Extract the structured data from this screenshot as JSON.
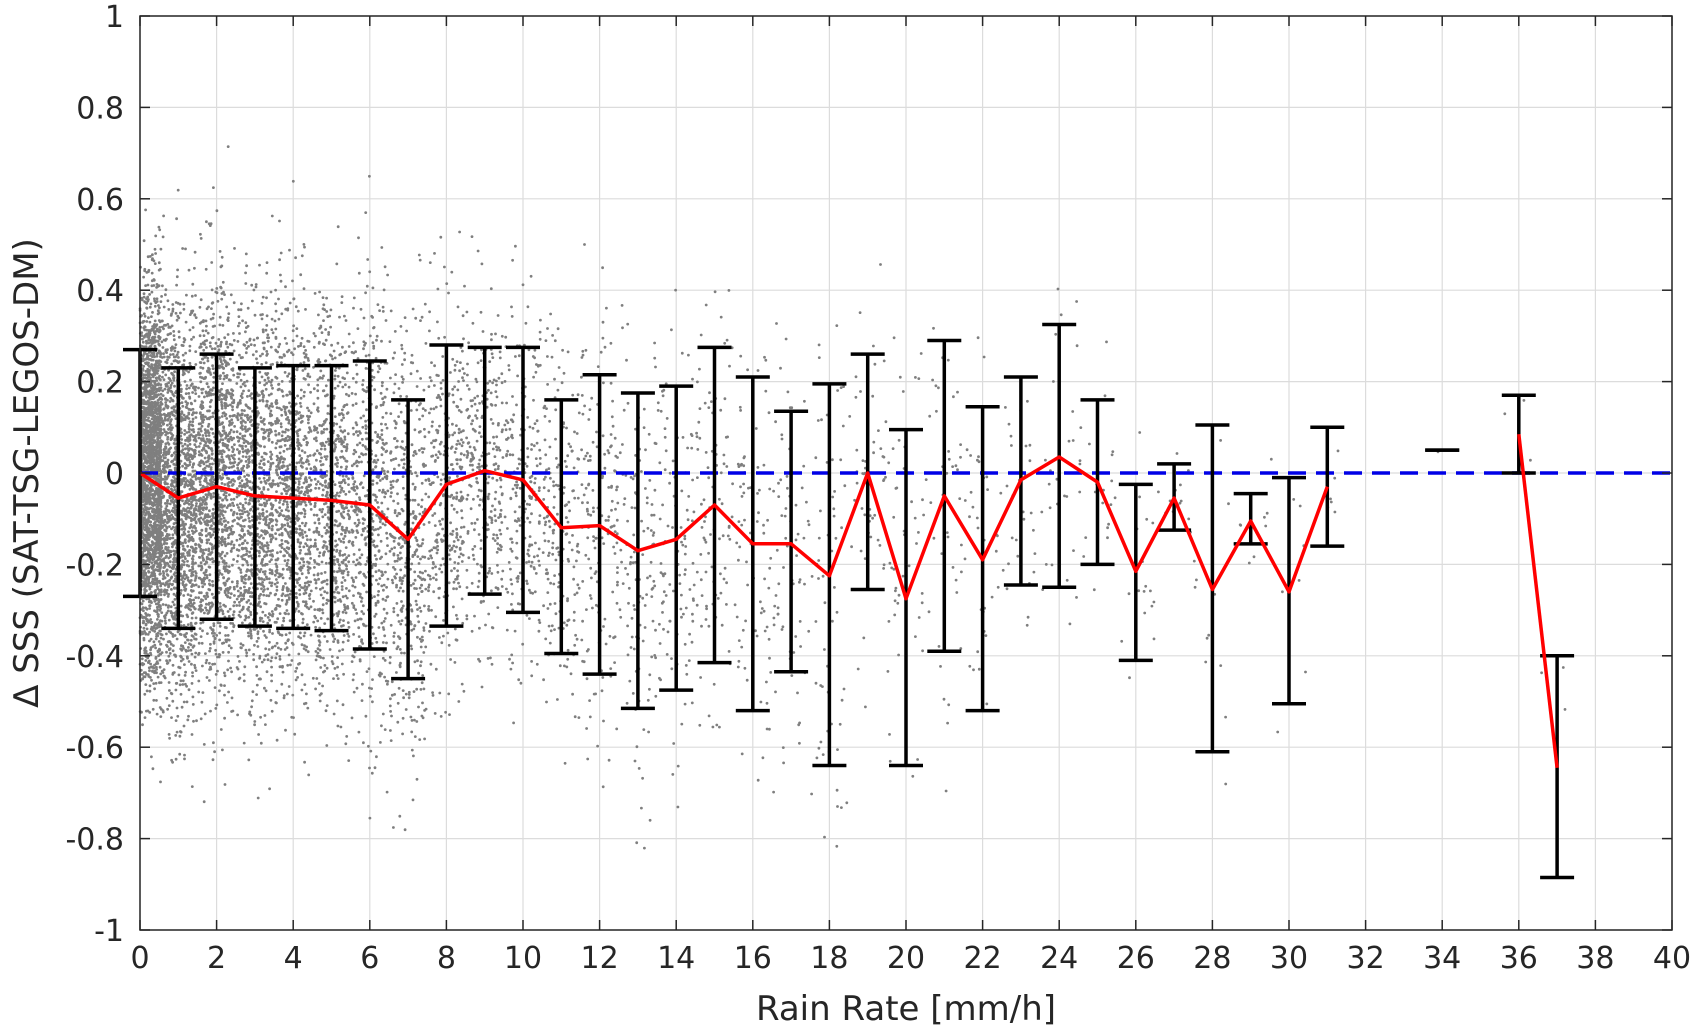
{
  "chart_data": {
    "type": "scatter",
    "title": "",
    "xlabel": "Rain Rate [mm/h]",
    "ylabel": "Δ SSS (SAT-TSG-LEGOS-DM)",
    "xlim": [
      0,
      40
    ],
    "ylim": [
      -1,
      1
    ],
    "xticks": [
      0,
      2,
      4,
      6,
      8,
      10,
      12,
      14,
      16,
      18,
      20,
      22,
      24,
      26,
      28,
      30,
      32,
      34,
      36,
      38,
      40
    ],
    "yticks": [
      -1,
      -0.8,
      -0.6,
      -0.4,
      -0.2,
      0,
      0.2,
      0.4,
      0.6,
      0.8,
      1
    ],
    "ytick_labels": [
      "-1",
      "-0.8",
      "-0.6",
      "-0.4",
      "-0.2",
      "0",
      "0.2",
      "0.4",
      "0.6",
      "0.8",
      "1"
    ],
    "grid": true,
    "legend": "none",
    "colors": {
      "scatter": "#7f7f7f",
      "mean_line": "#ff0000",
      "errorbar": "#000000",
      "reference_line": "#0000e6"
    },
    "reference_line": {
      "y": 0,
      "style": "dashed"
    },
    "series": [
      {
        "kind": "mean_with_std",
        "x": [
          0,
          1,
          2,
          3,
          4,
          5,
          6,
          7,
          8,
          9,
          10,
          11,
          12,
          13,
          14,
          15,
          16,
          17,
          18,
          19,
          20,
          21,
          22,
          23,
          24,
          25,
          26,
          27,
          28,
          29,
          30,
          31,
          34,
          36,
          37
        ],
        "mean": [
          0.0,
          -0.055,
          -0.03,
          -0.05,
          -0.055,
          -0.06,
          -0.07,
          -0.145,
          -0.025,
          0.005,
          -0.015,
          -0.12,
          -0.115,
          -0.17,
          -0.145,
          -0.07,
          -0.155,
          -0.155,
          -0.225,
          0.0,
          -0.275,
          -0.05,
          -0.19,
          -0.015,
          0.035,
          -0.02,
          -0.215,
          -0.055,
          -0.255,
          -0.105,
          -0.26,
          -0.03,
          0.05,
          0.085,
          -0.645
        ],
        "upper": [
          0.27,
          0.23,
          0.26,
          0.23,
          0.235,
          0.235,
          0.245,
          0.16,
          0.28,
          0.275,
          0.275,
          0.16,
          0.215,
          0.175,
          0.19,
          0.275,
          0.21,
          0.135,
          0.195,
          0.26,
          0.095,
          0.29,
          0.145,
          0.21,
          0.325,
          0.16,
          -0.025,
          0.02,
          0.105,
          -0.045,
          -0.01,
          0.1,
          0.05,
          0.17,
          -0.4
        ],
        "lower": [
          -0.27,
          -0.34,
          -0.32,
          -0.335,
          -0.34,
          -0.345,
          -0.385,
          -0.45,
          -0.335,
          -0.265,
          -0.305,
          -0.395,
          -0.44,
          -0.515,
          -0.475,
          -0.415,
          -0.52,
          -0.435,
          -0.64,
          -0.255,
          -0.64,
          -0.39,
          -0.52,
          -0.245,
          -0.25,
          -0.2,
          -0.41,
          -0.125,
          -0.61,
          -0.155,
          -0.505,
          -0.16,
          0.05,
          0.0,
          -0.885
        ]
      }
    ]
  }
}
